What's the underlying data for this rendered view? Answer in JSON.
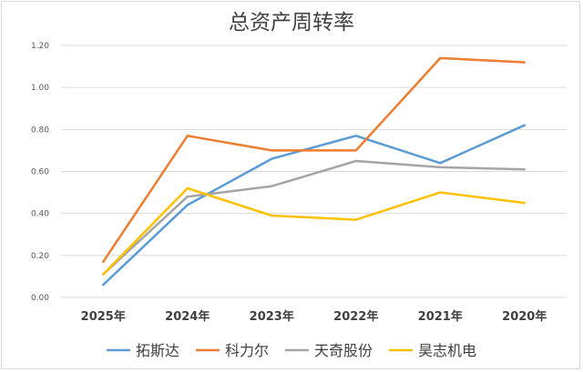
{
  "chart_data": {
    "type": "line",
    "title": "总资产周转率",
    "categories": [
      "2025年",
      "2024年",
      "2023年",
      "2022年",
      "2021年",
      "2020年"
    ],
    "y_ticks": [
      "0.00",
      "0.20",
      "0.40",
      "0.60",
      "0.80",
      "1.00",
      "1.20"
    ],
    "ylim": [
      0,
      1.2
    ],
    "grid": true,
    "legend_position": "bottom",
    "series": [
      {
        "name": "拓斯达",
        "color": "#5b9bd5",
        "values": [
          0.06,
          0.44,
          0.66,
          0.77,
          0.64,
          0.82
        ]
      },
      {
        "name": "科力尔",
        "color": "#ed7d31",
        "values": [
          0.17,
          0.77,
          0.7,
          0.7,
          1.14,
          1.12
        ]
      },
      {
        "name": "天奇股份",
        "color": "#a5a5a5",
        "values": [
          0.11,
          0.48,
          0.53,
          0.65,
          0.62,
          0.61
        ]
      },
      {
        "name": "昊志机电",
        "color": "#ffc000",
        "values": [
          0.11,
          0.52,
          0.39,
          0.37,
          0.5,
          0.45
        ]
      }
    ]
  }
}
